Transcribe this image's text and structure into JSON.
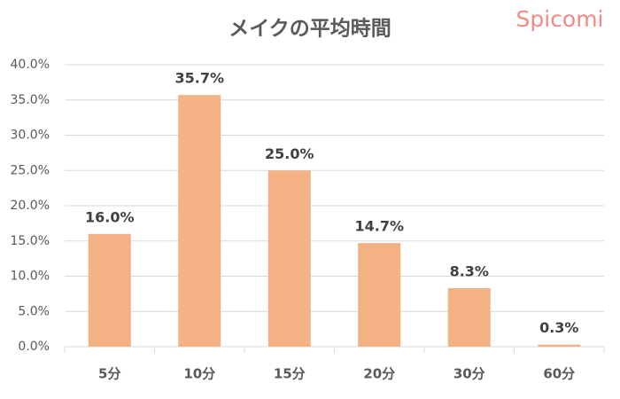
{
  "chart_data": {
    "type": "bar",
    "title": "メイクの平均時間",
    "watermark": "Spicomi",
    "categories": [
      "5分",
      "10分",
      "15分",
      "20分",
      "30分",
      "60分"
    ],
    "values": [
      16.0,
      35.7,
      25.0,
      14.7,
      8.3,
      0.3
    ],
    "value_labels": [
      "16.0%",
      "35.7%",
      "25.0%",
      "14.7%",
      "8.3%",
      "0.3%"
    ],
    "color": "#f4b183",
    "ylim": [
      0,
      40
    ],
    "yticks": [
      {
        "value": 0,
        "label": "0.0%"
      },
      {
        "value": 5,
        "label": "5.0%"
      },
      {
        "value": 10,
        "label": "10.0%"
      },
      {
        "value": 15,
        "label": "15.0%"
      },
      {
        "value": 20,
        "label": "20.0%"
      },
      {
        "value": 25,
        "label": "25.0%"
      },
      {
        "value": 30,
        "label": "30.0%"
      },
      {
        "value": 35,
        "label": "35.0%"
      },
      {
        "value": 40,
        "label": "40.0%"
      }
    ],
    "grid": true
  }
}
